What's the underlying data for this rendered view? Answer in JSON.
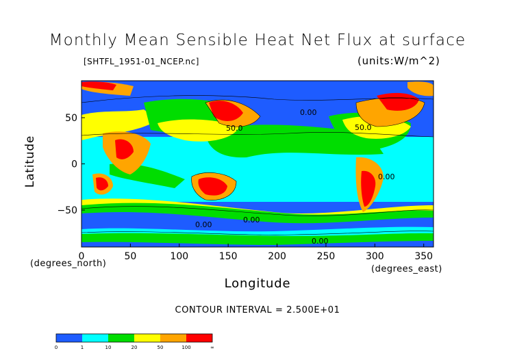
{
  "title": "Monthly Mean Sensible Heat Net Flux at surface",
  "file_label": "[SHTFL_1951-01_NCEP.nc]",
  "units_label": "(units:W/m^2)",
  "y_axis_label": "Latitude",
  "x_axis_label": "Longitude",
  "y_axis_note": "(degrees_north)",
  "x_axis_note": "(degrees_east)",
  "contour_interval": "CONTOUR INTERVAL = 2.500E+01",
  "colors": {
    "bin_0_1": "#1e5cff",
    "bin_1_10": "#00ffff",
    "bin_10_20": "#00dd00",
    "bin_20_50": "#ffff00",
    "bin_50_100": "#ffa500",
    "bin_100_inf": "#ff0000"
  },
  "chart_data": {
    "type": "heatmap",
    "xlim": [
      0,
      360
    ],
    "ylim": [
      -90,
      90
    ],
    "x_ticks": [
      "0",
      "50",
      "100",
      "150",
      "200",
      "250",
      "300",
      "350"
    ],
    "y_ticks": [
      "50",
      "0",
      "-50"
    ],
    "contour_labels": [
      "50.0",
      "50.0",
      "0.00",
      "0.00",
      "0.00",
      "0.00",
      "0.00"
    ],
    "colorbar": {
      "bins": [
        {
          "color": "#1e5cff"
        },
        {
          "color": "#00ffff"
        },
        {
          "color": "#00dd00"
        },
        {
          "color": "#ffff00"
        },
        {
          "color": "#ffa500"
        },
        {
          "color": "#ff0000"
        }
      ],
      "labels": [
        "0",
        "1",
        "10",
        "20",
        "50",
        "100",
        "∞"
      ]
    }
  }
}
